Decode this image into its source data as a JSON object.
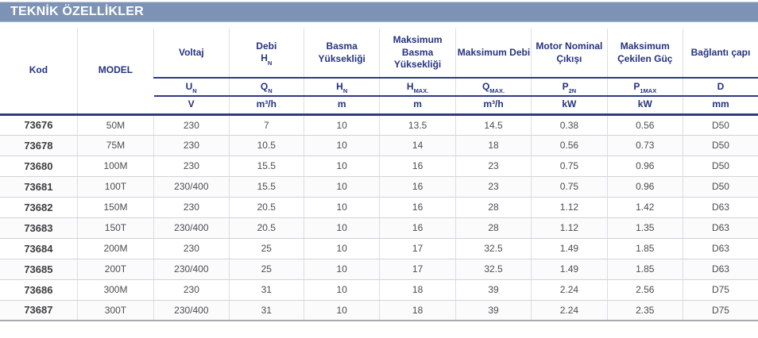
{
  "title": "TEKNİK ÖZELLİKLER",
  "colors": {
    "band_background": "#7d93b6",
    "header_text_navy": "#263380",
    "header_line_navy": "#2c3a87",
    "body_text": "#4d4d4f",
    "grid_line": "#dddee2",
    "row_line": "#d2d3d7",
    "bottom_line": "#a9abb3"
  },
  "table": {
    "columns": [
      {
        "key": "kod",
        "name": "Kod"
      },
      {
        "key": "model",
        "name": "MODEL"
      },
      {
        "key": "voltaj",
        "name": "Voltaj",
        "sym": "U",
        "sub": "N",
        "unit": "V"
      },
      {
        "key": "debi",
        "name": "Debi",
        "name_sym": "H",
        "name_sym_sub": "N",
        "sym": "Q",
        "sub": "N",
        "unit": "m³/h"
      },
      {
        "key": "basma",
        "name": "Basma Yüksekliği",
        "sym": "H",
        "sub": "N",
        "unit": "m"
      },
      {
        "key": "maks-basma",
        "name": "Maksimum Basma Yüksekliği",
        "sym": "H",
        "sub": "MAX.",
        "unit": "m"
      },
      {
        "key": "maks-debi",
        "name": "Maksimum Debi",
        "sym": "Q",
        "sub": "MAX.",
        "unit": "m³/h"
      },
      {
        "key": "motor-cikisi",
        "name": "Motor Nominal Çıkışı",
        "sym": "P",
        "sub": "2N",
        "unit": "kW"
      },
      {
        "key": "cekilen-guc",
        "name": "Maksimum Çekilen Güç",
        "sym": "P",
        "sub": "1MAX",
        "unit": "kW"
      },
      {
        "key": "baglanti-capi",
        "name": "Bağlantı çapı",
        "sym": "D",
        "sub": "",
        "unit": "mm"
      }
    ],
    "rows": [
      [
        "73676",
        "50M",
        "230",
        "7",
        "10",
        "13.5",
        "14.5",
        "0.38",
        "0.56",
        "D50"
      ],
      [
        "73678",
        "75M",
        "230",
        "10.5",
        "10",
        "14",
        "18",
        "0.56",
        "0.73",
        "D50"
      ],
      [
        "73680",
        "100M",
        "230",
        "15.5",
        "10",
        "16",
        "23",
        "0.75",
        "0.96",
        "D50"
      ],
      [
        "73681",
        "100T",
        "230/400",
        "15.5",
        "10",
        "16",
        "23",
        "0.75",
        "0.96",
        "D50"
      ],
      [
        "73682",
        "150M",
        "230",
        "20.5",
        "10",
        "16",
        "28",
        "1.12",
        "1.42",
        "D63"
      ],
      [
        "73683",
        "150T",
        "230/400",
        "20.5",
        "10",
        "16",
        "28",
        "1.12",
        "1.35",
        "D63"
      ],
      [
        "73684",
        "200M",
        "230",
        "25",
        "10",
        "17",
        "32.5",
        "1.49",
        "1.85",
        "D63"
      ],
      [
        "73685",
        "200T",
        "230/400",
        "25",
        "10",
        "17",
        "32.5",
        "1.49",
        "1.85",
        "D63"
      ],
      [
        "73686",
        "300M",
        "230",
        "31",
        "10",
        "18",
        "39",
        "2.24",
        "2.56",
        "D75"
      ],
      [
        "73687",
        "300T",
        "230/400",
        "31",
        "10",
        "18",
        "39",
        "2.24",
        "2.35",
        "D75"
      ]
    ]
  }
}
